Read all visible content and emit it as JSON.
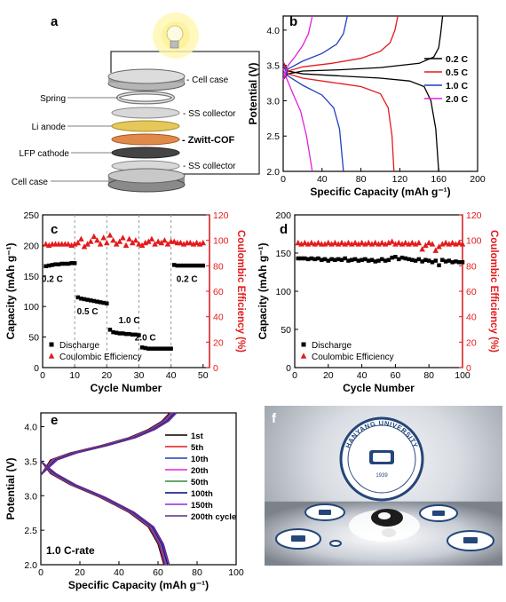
{
  "figure": {
    "panel_labels": {
      "a": "a",
      "b": "b",
      "c": "c",
      "d": "d",
      "e": "e",
      "f": "f"
    }
  },
  "schematic": {
    "left_labels": [
      "Spring",
      "Li anode",
      "LFP cathode",
      "Cell case"
    ],
    "right_labels": [
      "- Cell case",
      "- SS collector",
      "- Zwitt-COF",
      "- SS collector"
    ],
    "colors": {
      "case": "#9a9a9a",
      "collector": "#cfcfcf",
      "li": "#e6c75a",
      "cof": "#e08a4a",
      "lfp": "#4a4a4a",
      "bulb": "#f7e35c"
    }
  },
  "photo": {
    "university": "HANYANG UNIVERSITY",
    "year": "1939"
  },
  "chart_data": [
    {
      "id": "b",
      "type": "line",
      "xlabel": "Specific Capacity (mAh g⁻¹)",
      "ylabel": "Potential (V)",
      "xlim": [
        0,
        200
      ],
      "ylim": [
        2.0,
        4.2
      ],
      "xticks": [
        "0",
        "40",
        "80",
        "120",
        "160",
        "200"
      ],
      "yticks": [
        "2.0",
        "2.5",
        "3.0",
        "3.5",
        "4.0"
      ],
      "legend_position": "right",
      "series": [
        {
          "name": "0.2 C",
          "color": "#000000",
          "charge": [
            [
              0,
              3.3
            ],
            [
              5,
              3.38
            ],
            [
              20,
              3.42
            ],
            [
              60,
              3.44
            ],
            [
              100,
              3.47
            ],
            [
              140,
              3.53
            ],
            [
              155,
              3.62
            ],
            [
              160,
              3.75
            ],
            [
              162,
              3.95
            ],
            [
              164,
              4.2
            ]
          ],
          "discharge": [
            [
              0,
              3.55
            ],
            [
              5,
              3.42
            ],
            [
              20,
              3.38
            ],
            [
              60,
              3.35
            ],
            [
              100,
              3.32
            ],
            [
              130,
              3.28
            ],
            [
              145,
              3.2
            ],
            [
              152,
              3.0
            ],
            [
              157,
              2.6
            ],
            [
              160,
              2.0
            ]
          ]
        },
        {
          "name": "0.5 C",
          "color": "#e41a1c",
          "charge": [
            [
              0,
              3.3
            ],
            [
              5,
              3.42
            ],
            [
              20,
              3.48
            ],
            [
              50,
              3.53
            ],
            [
              80,
              3.6
            ],
            [
              100,
              3.7
            ],
            [
              110,
              3.82
            ],
            [
              115,
              4.0
            ],
            [
              118,
              4.2
            ]
          ],
          "discharge": [
            [
              0,
              3.55
            ],
            [
              5,
              3.38
            ],
            [
              20,
              3.32
            ],
            [
              50,
              3.26
            ],
            [
              80,
              3.2
            ],
            [
              100,
              3.1
            ],
            [
              108,
              2.9
            ],
            [
              112,
              2.5
            ],
            [
              114,
              2.0
            ]
          ]
        },
        {
          "name": "1.0 C",
          "color": "#1f3fbf",
          "charge": [
            [
              0,
              3.3
            ],
            [
              5,
              3.45
            ],
            [
              20,
              3.56
            ],
            [
              40,
              3.67
            ],
            [
              55,
              3.8
            ],
            [
              62,
              3.95
            ],
            [
              66,
              4.2
            ]
          ],
          "discharge": [
            [
              0,
              3.5
            ],
            [
              5,
              3.35
            ],
            [
              20,
              3.22
            ],
            [
              40,
              3.08
            ],
            [
              52,
              2.9
            ],
            [
              58,
              2.6
            ],
            [
              62,
              2.0
            ]
          ]
        },
        {
          "name": "2.0 C",
          "color": "#e020e0",
          "charge": [
            [
              0,
              3.3
            ],
            [
              5,
              3.5
            ],
            [
              12,
              3.62
            ],
            [
              20,
              3.78
            ],
            [
              26,
              3.95
            ],
            [
              30,
              4.2
            ]
          ],
          "discharge": [
            [
              0,
              3.45
            ],
            [
              4,
              3.3
            ],
            [
              10,
              3.1
            ],
            [
              18,
              2.85
            ],
            [
              24,
              2.5
            ],
            [
              30,
              2.0
            ]
          ]
        }
      ]
    },
    {
      "id": "c",
      "type": "scatter",
      "xlabel": "Cycle Number",
      "ylabel": "Capacity (mAh g⁻¹)",
      "y2label": "Coulombic Efficiency (%)",
      "xlim": [
        0,
        52
      ],
      "ylim": [
        0,
        250
      ],
      "y2lim": [
        0,
        120
      ],
      "xticks": [
        "0",
        "10",
        "20",
        "30",
        "40",
        "50"
      ],
      "yticks": [
        "0",
        "50",
        "100",
        "150",
        "200",
        "250"
      ],
      "y2ticks": [
        "0",
        "20",
        "40",
        "60",
        "80",
        "100",
        "120"
      ],
      "rate_labels": [
        "0.2 C",
        "0.5 C",
        "1.0 C",
        "2.0 C",
        "0.2 C"
      ],
      "rate_label_positions": [
        [
          3,
          140
        ],
        [
          14,
          87
        ],
        [
          27,
          73
        ],
        [
          32,
          44
        ],
        [
          45,
          140
        ]
      ],
      "dividers": [
        10,
        20,
        30,
        40
      ],
      "legend": [
        "Discharge",
        "Coulombic Efficiency"
      ],
      "legend_position": "bottom-left",
      "discharge": [
        [
          1,
          166
        ],
        [
          2,
          167
        ],
        [
          3,
          168
        ],
        [
          4,
          169
        ],
        [
          5,
          169
        ],
        [
          6,
          170
        ],
        [
          7,
          170
        ],
        [
          8,
          170
        ],
        [
          9,
          171
        ],
        [
          10,
          171
        ],
        [
          11,
          115
        ],
        [
          12,
          113
        ],
        [
          13,
          112
        ],
        [
          14,
          111
        ],
        [
          15,
          110
        ],
        [
          16,
          109
        ],
        [
          17,
          108
        ],
        [
          18,
          107
        ],
        [
          19,
          106
        ],
        [
          20,
          105
        ],
        [
          21,
          62
        ],
        [
          22,
          58
        ],
        [
          23,
          57
        ],
        [
          24,
          56
        ],
        [
          25,
          56
        ],
        [
          26,
          55
        ],
        [
          27,
          55
        ],
        [
          28,
          54
        ],
        [
          29,
          54
        ],
        [
          30,
          53
        ],
        [
          31,
          33
        ],
        [
          32,
          32
        ],
        [
          33,
          31
        ],
        [
          34,
          31
        ],
        [
          35,
          31
        ],
        [
          36,
          31
        ],
        [
          37,
          31
        ],
        [
          38,
          31
        ],
        [
          39,
          31
        ],
        [
          40,
          31
        ],
        [
          41,
          168
        ],
        [
          42,
          167
        ],
        [
          43,
          167
        ],
        [
          44,
          167
        ],
        [
          45,
          167
        ],
        [
          46,
          167
        ],
        [
          47,
          167
        ],
        [
          48,
          167
        ],
        [
          49,
          167
        ],
        [
          50,
          167
        ]
      ],
      "efficiency": [
        [
          1,
          97
        ],
        [
          2,
          96
        ],
        [
          3,
          97
        ],
        [
          4,
          97
        ],
        [
          5,
          97
        ],
        [
          6,
          97
        ],
        [
          7,
          97
        ],
        [
          8,
          97
        ],
        [
          9,
          96
        ],
        [
          10,
          97
        ],
        [
          11,
          98
        ],
        [
          12,
          101
        ],
        [
          13,
          95
        ],
        [
          14,
          97
        ],
        [
          15,
          99
        ],
        [
          16,
          103
        ],
        [
          17,
          100
        ],
        [
          18,
          97
        ],
        [
          19,
          102
        ],
        [
          20,
          98
        ],
        [
          21,
          104
        ],
        [
          22,
          100
        ],
        [
          23,
          97
        ],
        [
          24,
          99
        ],
        [
          25,
          102
        ],
        [
          26,
          96
        ],
        [
          27,
          101
        ],
        [
          28,
          98
        ],
        [
          29,
          100
        ],
        [
          30,
          97
        ],
        [
          31,
          96
        ],
        [
          32,
          98
        ],
        [
          33,
          99
        ],
        [
          34,
          101
        ],
        [
          35,
          97
        ],
        [
          36,
          99
        ],
        [
          37,
          98
        ],
        [
          38,
          100
        ],
        [
          39,
          97
        ],
        [
          40,
          99
        ],
        [
          41,
          99
        ],
        [
          42,
          98
        ],
        [
          43,
          98
        ],
        [
          44,
          97
        ],
        [
          45,
          98
        ],
        [
          46,
          98
        ],
        [
          47,
          97
        ],
        [
          48,
          98
        ],
        [
          49,
          97
        ],
        [
          50,
          98
        ]
      ]
    },
    {
      "id": "d",
      "type": "scatter",
      "xlabel": "Cycle Number",
      "ylabel": "Capacity (mAh g⁻¹)",
      "y2label": "Coulombic Efficiency (%)",
      "xlim": [
        0,
        100
      ],
      "ylim": [
        0,
        200
      ],
      "y2lim": [
        0,
        120
      ],
      "xticks": [
        "0",
        "20",
        "40",
        "60",
        "80",
        "100"
      ],
      "yticks": [
        "0",
        "50",
        "100",
        "150",
        "200"
      ],
      "y2ticks": [
        "0",
        "20",
        "40",
        "60",
        "80",
        "100",
        "120"
      ],
      "legend": [
        "Discharge",
        "Coulombic Efficiency"
      ],
      "legend_position": "bottom-left",
      "discharge": [
        [
          2,
          143
        ],
        [
          4,
          143
        ],
        [
          6,
          143
        ],
        [
          8,
          142
        ],
        [
          10,
          143
        ],
        [
          12,
          142
        ],
        [
          14,
          143
        ],
        [
          16,
          141
        ],
        [
          18,
          142
        ],
        [
          20,
          140
        ],
        [
          22,
          142
        ],
        [
          24,
          141
        ],
        [
          26,
          142
        ],
        [
          28,
          141
        ],
        [
          30,
          143
        ],
        [
          32,
          140
        ],
        [
          34,
          141
        ],
        [
          36,
          142
        ],
        [
          38,
          140
        ],
        [
          40,
          141
        ],
        [
          42,
          142
        ],
        [
          44,
          140
        ],
        [
          46,
          141
        ],
        [
          48,
          139
        ],
        [
          50,
          140
        ],
        [
          52,
          142
        ],
        [
          54,
          140
        ],
        [
          56,
          141
        ],
        [
          58,
          144
        ],
        [
          60,
          145
        ],
        [
          62,
          142
        ],
        [
          64,
          144
        ],
        [
          66,
          143
        ],
        [
          68,
          142
        ],
        [
          70,
          141
        ],
        [
          72,
          140
        ],
        [
          74,
          142
        ],
        [
          76,
          139
        ],
        [
          78,
          141
        ],
        [
          80,
          140
        ],
        [
          82,
          138
        ],
        [
          84,
          140
        ],
        [
          86,
          134
        ],
        [
          88,
          141
        ],
        [
          90,
          139
        ],
        [
          92,
          140
        ],
        [
          94,
          138
        ],
        [
          96,
          139
        ],
        [
          98,
          138
        ],
        [
          100,
          138
        ]
      ],
      "efficiency": [
        [
          2,
          98
        ],
        [
          4,
          97
        ],
        [
          6,
          98
        ],
        [
          8,
          97
        ],
        [
          10,
          98
        ],
        [
          12,
          97
        ],
        [
          14,
          98
        ],
        [
          16,
          97
        ],
        [
          18,
          97
        ],
        [
          20,
          98
        ],
        [
          22,
          97
        ],
        [
          24,
          98
        ],
        [
          26,
          97
        ],
        [
          28,
          98
        ],
        [
          30,
          97
        ],
        [
          32,
          98
        ],
        [
          34,
          97
        ],
        [
          36,
          98
        ],
        [
          38,
          97
        ],
        [
          40,
          98
        ],
        [
          42,
          97
        ],
        [
          44,
          98
        ],
        [
          46,
          97
        ],
        [
          48,
          98
        ],
        [
          50,
          97
        ],
        [
          52,
          98
        ],
        [
          54,
          97
        ],
        [
          56,
          98
        ],
        [
          58,
          99
        ],
        [
          60,
          97
        ],
        [
          62,
          98
        ],
        [
          64,
          97
        ],
        [
          66,
          98
        ],
        [
          68,
          97
        ],
        [
          70,
          98
        ],
        [
          72,
          97
        ],
        [
          74,
          98
        ],
        [
          76,
          93
        ],
        [
          78,
          96
        ],
        [
          80,
          98
        ],
        [
          82,
          97
        ],
        [
          84,
          92
        ],
        [
          86,
          95
        ],
        [
          88,
          97
        ],
        [
          90,
          98
        ],
        [
          92,
          97
        ],
        [
          94,
          98
        ],
        [
          96,
          97
        ],
        [
          98,
          98
        ],
        [
          100,
          97
        ]
      ]
    },
    {
      "id": "e",
      "type": "line",
      "xlabel": "Specific Capacity (mAh g⁻¹)",
      "ylabel": "Potential (V)",
      "xlim": [
        0,
        100
      ],
      "ylim": [
        2.0,
        4.2
      ],
      "xticks": [
        "0",
        "20",
        "40",
        "60",
        "80",
        "100"
      ],
      "yticks": [
        "2.0",
        "2.5",
        "3.0",
        "3.5",
        "4.0"
      ],
      "annotation": "1.0 C-rate",
      "legend_position": "right",
      "series": [
        {
          "name": "1st",
          "color": "#000000",
          "shift": 0
        },
        {
          "name": "5th",
          "color": "#e41a1c",
          "shift": 0.5
        },
        {
          "name": "10th",
          "color": "#1f3fbf",
          "shift": 1
        },
        {
          "name": "20th",
          "color": "#e020e0",
          "shift": 1.5
        },
        {
          "name": "50th",
          "color": "#2e8b2e",
          "shift": 2
        },
        {
          "name": "100th",
          "color": "#000080",
          "shift": 2.5
        },
        {
          "name": "150th",
          "color": "#8a2be2",
          "shift": 3
        },
        {
          "name": "200th cycle",
          "color": "#5b2a86",
          "shift": 3.5
        }
      ],
      "charge_base": [
        [
          0,
          3.3
        ],
        [
          5,
          3.52
        ],
        [
          15,
          3.62
        ],
        [
          30,
          3.72
        ],
        [
          45,
          3.84
        ],
        [
          55,
          3.96
        ],
        [
          62,
          4.08
        ],
        [
          66,
          4.2
        ]
      ],
      "discharge_base": [
        [
          0,
          3.5
        ],
        [
          5,
          3.32
        ],
        [
          15,
          3.16
        ],
        [
          30,
          2.98
        ],
        [
          45,
          2.76
        ],
        [
          55,
          2.55
        ],
        [
          60,
          2.3
        ],
        [
          63,
          2.0
        ]
      ]
    }
  ]
}
